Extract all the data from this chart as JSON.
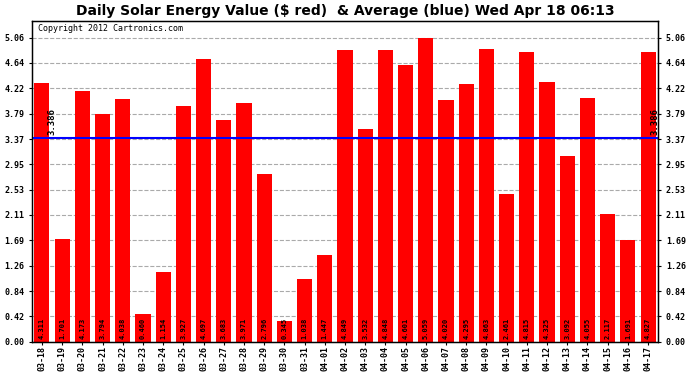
{
  "title": "Daily Solar Energy Value ($ red)  & Average (blue) Wed Apr 18 06:13",
  "copyright": "Copyright 2012 Cartronics.com",
  "average": 3.386,
  "bar_color": "#FF0000",
  "avg_line_color": "#0000FF",
  "background_color": "#FFFFFF",
  "plot_bg_color": "#FFFFFF",
  "grid_color": "#AAAAAA",
  "categories": [
    "03-18",
    "03-19",
    "03-20",
    "03-21",
    "03-22",
    "03-23",
    "03-24",
    "03-25",
    "03-26",
    "03-27",
    "03-28",
    "03-29",
    "03-30",
    "03-31",
    "04-01",
    "04-02",
    "04-03",
    "04-04",
    "04-05",
    "04-06",
    "04-07",
    "04-08",
    "04-09",
    "04-10",
    "04-11",
    "04-12",
    "04-13",
    "04-14",
    "04-15",
    "04-16",
    "04-17"
  ],
  "values": [
    4.311,
    1.701,
    4.173,
    3.794,
    4.038,
    0.46,
    1.154,
    3.927,
    4.697,
    3.683,
    3.971,
    2.796,
    0.345,
    1.038,
    1.447,
    4.849,
    3.532,
    4.848,
    4.601,
    5.059,
    4.02,
    4.295,
    4.863,
    2.461,
    4.815,
    4.325,
    3.092,
    4.055,
    2.117,
    1.691,
    4.827
  ],
  "ylim": [
    0,
    5.34
  ],
  "yticks": [
    0.0,
    0.42,
    0.84,
    1.26,
    1.69,
    2.11,
    2.53,
    2.95,
    3.37,
    3.79,
    4.22,
    4.64,
    5.06
  ],
  "avg_label": "3.386",
  "title_fontsize": 10,
  "tick_fontsize": 6,
  "value_fontsize": 5,
  "copyright_fontsize": 6
}
